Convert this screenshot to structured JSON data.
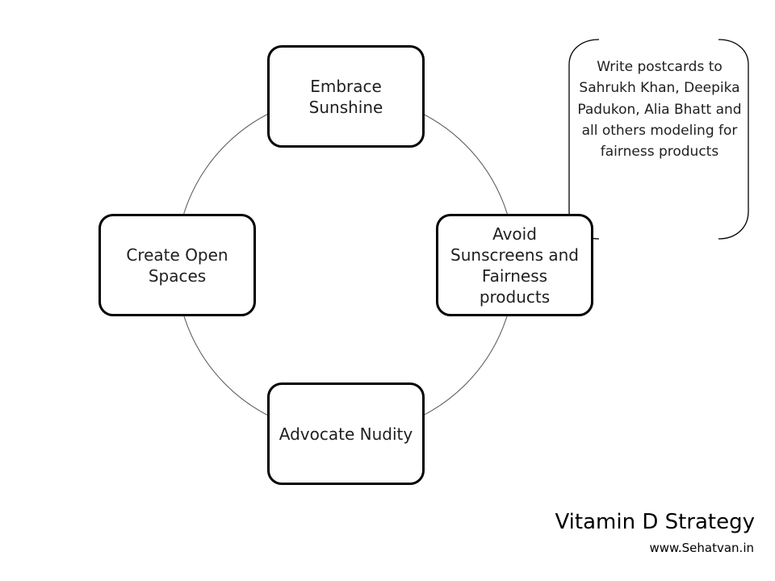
{
  "cycle": {
    "nodes": [
      {
        "label": "Embrace Sunshine"
      },
      {
        "label": "Avoid Sunscreens and Fairness products"
      },
      {
        "label": "Advocate Nudity"
      },
      {
        "label": "Create Open Spaces"
      }
    ]
  },
  "callout": {
    "text": "Write postcards to Sahrukh Khan, Deepika Padukon, Alia Bhatt and all others modeling for fairness products"
  },
  "footer": {
    "title": "Vitamin D Strategy",
    "site": "www.Sehatvan.in"
  }
}
